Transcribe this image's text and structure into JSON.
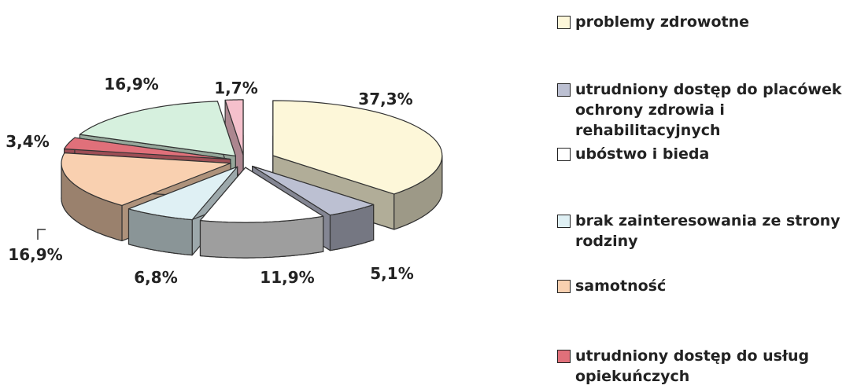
{
  "chart_data": {
    "type": "pie3d",
    "categories": [
      "problemy zdrowotne",
      "utrudniony dostęp do placówek ochrony zdrowia i rehabilitacyjnych",
      "ubóstwo i bieda",
      "brak zainteresowania ze strony rodziny",
      "samotność",
      "utrudniony dostęp do usług opiekuńczych",
      null,
      null
    ],
    "values": [
      37.3,
      5.1,
      11.9,
      6.8,
      16.9,
      3.4,
      16.9,
      1.7
    ],
    "value_labels": [
      "37,3%",
      "5,1%",
      "11,9%",
      "6,8%",
      "16,9%",
      "3,4%",
      "16,9%",
      "1,7%"
    ],
    "colors": [
      "#fdf7d9",
      "#bcc0d2",
      "#ffffff",
      "#dff0f4",
      "#f9d0b0",
      "#e0707a",
      "#d6f0de",
      "#f5c0cc"
    ],
    "legend": "right"
  }
}
